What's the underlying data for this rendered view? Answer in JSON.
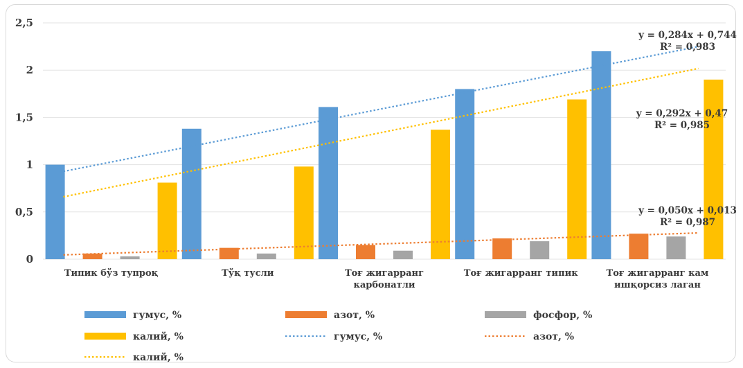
{
  "chart_data": {
    "type": "bar",
    "categories": [
      [
        "Типик бўз тупроқ"
      ],
      [
        "Тўқ тусли"
      ],
      [
        "Тоғ жигарранг",
        "карбонатли"
      ],
      [
        "Тоғ жигарранг типик"
      ],
      [
        "Тоғ жигарранг кам",
        "ишқорсиз лаган"
      ]
    ],
    "ylim": [
      0,
      2.5
    ],
    "yticks": [
      0,
      0.5,
      1,
      1.5,
      2,
      2.5
    ],
    "ytick_labels": [
      "0",
      "0,5",
      "1",
      "1,5",
      "2",
      "2,5"
    ],
    "grid": true,
    "legend_position": "bottom",
    "series": [
      {
        "name": "гумус, %",
        "color": "#5b9bd5",
        "values": [
          1.0,
          1.38,
          1.61,
          1.8,
          2.2
        ]
      },
      {
        "name": "азот, %",
        "color": "#ed7d31",
        "values": [
          0.06,
          0.12,
          0.15,
          0.22,
          0.27
        ]
      },
      {
        "name": "фосфор, %",
        "color": "#a5a5a5",
        "values": [
          0.03,
          0.06,
          0.09,
          0.19,
          0.24
        ]
      },
      {
        "name": "калий, %",
        "color": "#ffc000",
        "values": [
          0.81,
          0.98,
          1.37,
          1.69,
          1.9
        ]
      }
    ],
    "trendlines": [
      {
        "name": "гумус, %",
        "color": "#5b9bd5",
        "slope": 0.284,
        "intercept": 0.744,
        "equation": "y = 0,284x + 0,744",
        "r2": "R² = 0,983"
      },
      {
        "name": "азот, %",
        "color": "#ed7d31",
        "slope": 0.05,
        "intercept": 0.013,
        "equation": "y = 0,050x + 0,013",
        "r2": "R² = 0,987"
      },
      {
        "name": "калий, %",
        "color": "#ffc000",
        "slope": 0.292,
        "intercept": 0.47,
        "equation": "y = 0,292x + 0,47",
        "r2": "R² = 0,985"
      }
    ]
  }
}
